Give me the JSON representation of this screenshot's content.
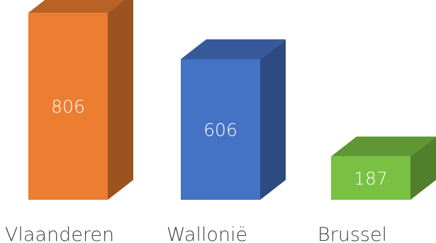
{
  "chart_data": {
    "type": "bar",
    "style": "3d-column",
    "categories": [
      "Vlaanderen",
      "Wallonië",
      "Brussel"
    ],
    "values": [
      806,
      606,
      187
    ],
    "colors": [
      "#ED7D31",
      "#4472C4",
      "#7AC143"
    ],
    "title": "",
    "xlabel": "",
    "ylabel": "",
    "grid": false,
    "legend": "none",
    "data_labels": "inside"
  }
}
